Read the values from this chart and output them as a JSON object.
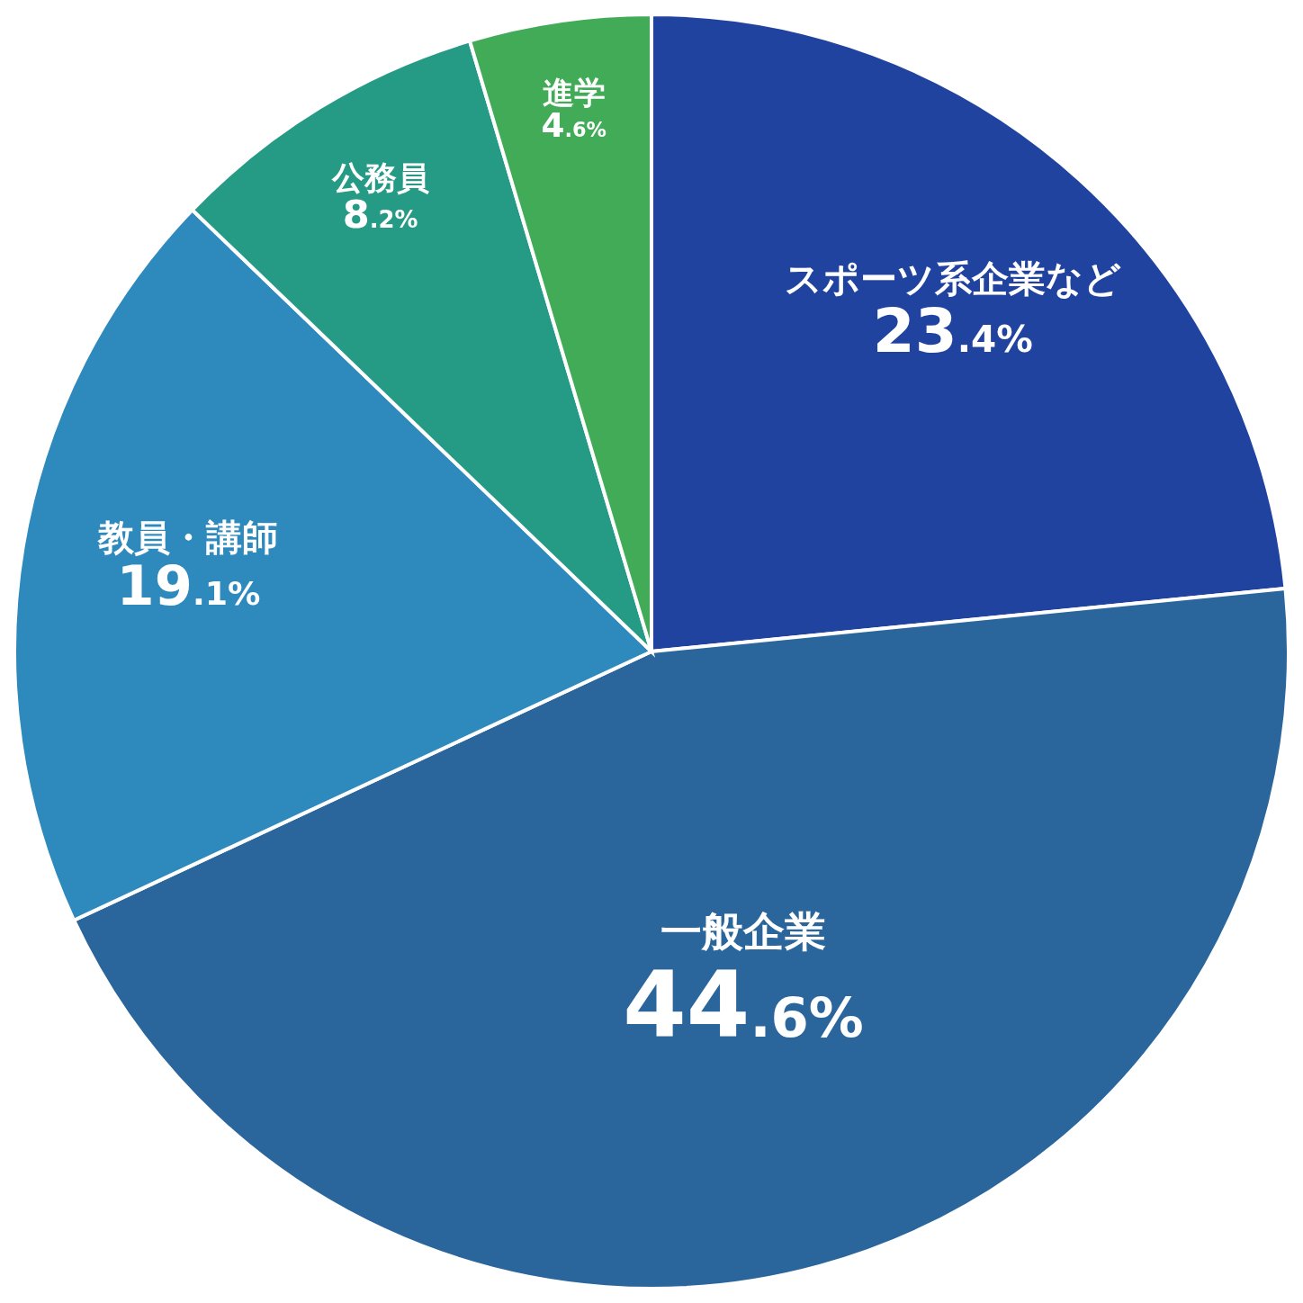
{
  "chart_data": {
    "type": "pie",
    "categories": [
      "スポーツ系企業など",
      "一般企業",
      "教員・講師",
      "公務員",
      "進学"
    ],
    "values": [
      23.4,
      44.6,
      19.1,
      8.2,
      4.6
    ],
    "colors": [
      "#2143a0",
      "#2a669c",
      "#2e89bd",
      "#259a85",
      "#42ab57"
    ],
    "value_labels": [
      "23.4%",
      "44.6%",
      "19.1%",
      "8.2%",
      "4.6%"
    ]
  }
}
